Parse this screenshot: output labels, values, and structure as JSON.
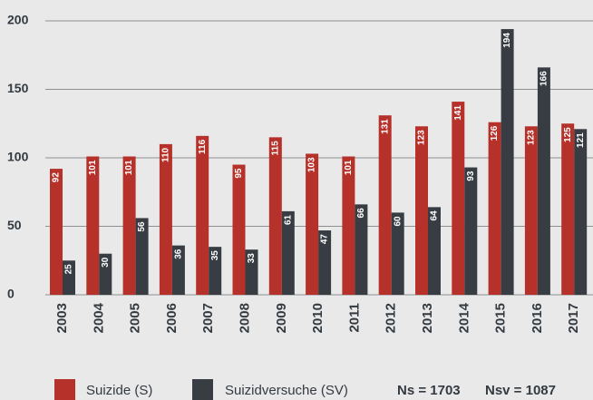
{
  "chart_data": {
    "type": "bar",
    "categories": [
      "2003",
      "2004",
      "2005",
      "2006",
      "2007",
      "2008",
      "2009",
      "2010",
      "2011",
      "2012",
      "2013",
      "2014",
      "2015",
      "2016",
      "2017"
    ],
    "series": [
      {
        "name": "Suizide (S)",
        "color": "#b5312a",
        "values": [
          92,
          101,
          101,
          110,
          116,
          95,
          115,
          103,
          101,
          131,
          123,
          141,
          126,
          123,
          125
        ]
      },
      {
        "name": "Suizidversuche (SV)",
        "color": "#373d42",
        "values": [
          25,
          30,
          56,
          36,
          35,
          33,
          61,
          47,
          66,
          60,
          64,
          93,
          194,
          166,
          121
        ]
      }
    ],
    "ylim": [
      0,
      200
    ],
    "yticks": [
      0,
      50,
      100,
      150,
      200
    ],
    "grid": true,
    "annotations": [
      "Ns = 1703",
      "Nsv = 1087"
    ]
  }
}
